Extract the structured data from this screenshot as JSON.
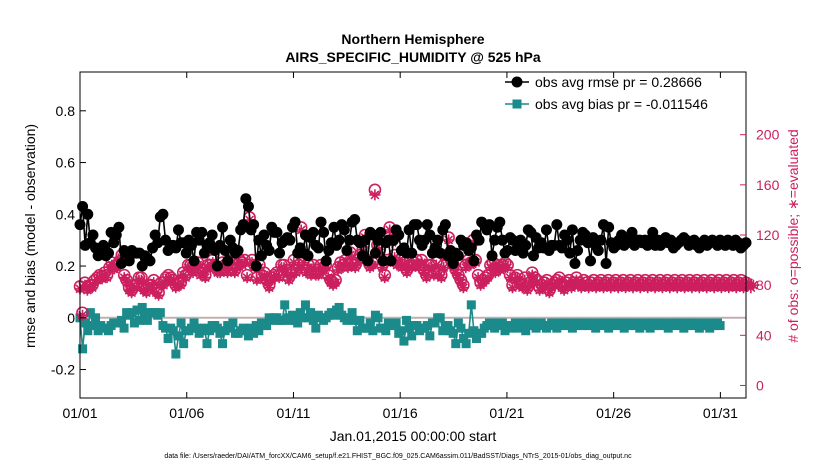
{
  "chart_data": {
    "type": "line",
    "title_lines": [
      "Northern Hemisphere",
      "AIRS_SPECIFIC_HUMIDITY @ 525 hPa"
    ],
    "xlabel": "Jan.01,2015 00:00:00 start",
    "ylabel": "rmse and bias (model - observation)",
    "ylabel_right": "# of obs: o=possible; ∗=evaluated",
    "footer": "data file: /Users/raeder/DAI/ATM_forcXX/CAM6_setup/f.e21.FHIST_BGC.f09_025.CAM6assim.011/BadSST/Diags_NTrS_2015-01/obs_diag_output.nc",
    "x_tick_labels": [
      "01/01",
      "01/06",
      "01/11",
      "01/16",
      "01/21",
      "01/26",
      "01/31"
    ],
    "x_tick_days": [
      1,
      6,
      11,
      16,
      21,
      26,
      31
    ],
    "xlim": [
      1,
      32.2
    ],
    "ylim": [
      -0.31,
      0.95
    ],
    "yticks": [
      -0.2,
      0,
      0.2,
      0.4,
      0.6,
      0.8
    ],
    "y_tick_labels": [
      "-0.2",
      "0",
      "0.2",
      "0.4",
      "0.6",
      "0.8"
    ],
    "ylim_right": [
      -10,
      250
    ],
    "yticks_right": [
      0,
      40,
      80,
      120,
      160,
      200
    ],
    "y_tick_labels_right": [
      "0",
      "40",
      "80",
      "120",
      "160",
      "200"
    ],
    "zero_line": 0,
    "legend_position": "top-right",
    "colors": {
      "rmse": "#000000",
      "bias": "#1a8a8a",
      "obs": "#cc1f5e",
      "zero": "#c0b0b0"
    },
    "series": [
      {
        "name": "obs avg rmse pr = 0.28666",
        "values": [
          0.36,
          0.43,
          0.28,
          0.4,
          0.29,
          0.32,
          0.27,
          0.24,
          0.25,
          0.28,
          0.24,
          0.25,
          0.33,
          0.29,
          0.32,
          0.35,
          0.21,
          0.26,
          0.25,
          0.22,
          0.26,
          0.25,
          0.25,
          0.25,
          0.2,
          0.24,
          0.23,
          0.22,
          0.27,
          0.32,
          0.29,
          0.39,
          0.4,
          0.3,
          0.26,
          0.28,
          0.28,
          0.27,
          0.34,
          0.29,
          0.29,
          0.25,
          0.3,
          0.28,
          0.22,
          0.33,
          0.3,
          0.33,
          0.25,
          0.28,
          0.29,
          0.32,
          0.26,
          0.2,
          0.28,
          0.35,
          0.26,
          0.22,
          0.3,
          0.27,
          0.25,
          0.26,
          0.34,
          0.36,
          0.46,
          0.43,
          0.34,
          0.36,
          0.2,
          0.3,
          0.24,
          0.32,
          0.28,
          0.26,
          0.35,
          0.33,
          0.33,
          0.25,
          0.29,
          0.3,
          0.31,
          0.3,
          0.35,
          0.37,
          0.25,
          0.27,
          0.25,
          0.32,
          0.24,
          0.31,
          0.33,
          0.28,
          0.27,
          0.37,
          0.33,
          0.22,
          0.26,
          0.29,
          0.35,
          0.28,
          0.3,
          0.36,
          0.34,
          0.26,
          0.3,
          0.37,
          0.38,
          0.3,
          0.29,
          0.24,
          0.3,
          0.22,
          0.33,
          0.32,
          0.25,
          0.3,
          0.33,
          0.22,
          0.29,
          0.3,
          0.22,
          0.3,
          0.34,
          0.32,
          0.26,
          0.27,
          0.25,
          0.34,
          0.25,
          0.36,
          0.36,
          0.3,
          0.28,
          0.3,
          0.36,
          0.32,
          0.25,
          0.27,
          0.3,
          0.25,
          0.34,
          0.36,
          0.24,
          0.26,
          0.21,
          0.25,
          0.24,
          0.3,
          0.28,
          0.29,
          0.26,
          0.27,
          0.22,
          0.32,
          0.3,
          0.37,
          0.36,
          0.34,
          0.36,
          0.24,
          0.3,
          0.35,
          0.37,
          0.3,
          0.25,
          0.26,
          0.31,
          0.3,
          0.26,
          0.28,
          0.3,
          0.25,
          0.28,
          0.34,
          0.33,
          0.24,
          0.31,
          0.27,
          0.29,
          0.27,
          0.34,
          0.26,
          0.28,
          0.28,
          0.36,
          0.28,
          0.27,
          0.32,
          0.3,
          0.25,
          0.34,
          0.21,
          0.26,
          0.3,
          0.33,
          0.32,
          0.29,
          0.22,
          0.31,
          0.28,
          0.26,
          0.3,
          0.36,
          0.21,
          0.35,
          0.29,
          0.27,
          0.28,
          0.3,
          0.32,
          0.28,
          0.29,
          0.3,
          0.33,
          0.28,
          0.3,
          0.3,
          0.29,
          0.3,
          0.28,
          0.3,
          0.33,
          0.28,
          0.3,
          0.28,
          0.3,
          0.31,
          0.29,
          0.3,
          0.27,
          0.28,
          0.29,
          0.3,
          0.31,
          0.3,
          0.28,
          0.29,
          0.3,
          0.28,
          0.27,
          0.29,
          0.3,
          0.28,
          0.29,
          0.3,
          0.29,
          0.28,
          0.3,
          0.29,
          0.28,
          0.3,
          0.29,
          0.28,
          0.3,
          0.29,
          0.27,
          0.28,
          0.29
        ]
      },
      {
        "name": "obs avg bias pr = -0.011546",
        "values": [
          0.0,
          -0.12,
          -0.02,
          -0.05,
          0.02,
          -0.03,
          0.0,
          -0.05,
          -0.03,
          -0.04,
          -0.04,
          -0.05,
          -0.03,
          -0.02,
          -0.02,
          -0.02,
          -0.01,
          -0.04,
          0.02,
          0.01,
          0.02,
          -0.02,
          0.03,
          -0.01,
          0.04,
          0.01,
          -0.01,
          0.02,
          0.02,
          0.02,
          0.01,
          0.02,
          -0.03,
          -0.04,
          -0.08,
          -0.04,
          -0.05,
          -0.14,
          -0.07,
          -0.02,
          -0.1,
          -0.05,
          -0.05,
          -0.04,
          -0.02,
          -0.04,
          -0.06,
          -0.05,
          -0.04,
          -0.1,
          -0.05,
          -0.03,
          -0.03,
          -0.04,
          -0.06,
          -0.1,
          -0.05,
          -0.03,
          -0.04,
          -0.02,
          -0.06,
          -0.06,
          -0.05,
          -0.04,
          -0.05,
          -0.07,
          -0.04,
          -0.06,
          -0.03,
          -0.05,
          -0.02,
          -0.03,
          -0.03,
          0.0,
          -0.01,
          0.0,
          0.0,
          -0.01,
          -0.01,
          0.05,
          0.0,
          -0.01,
          0.01,
          -0.01,
          -0.02,
          0.02,
          0.0,
          0.05,
          0.0,
          0.02,
          -0.01,
          -0.04,
          0.01,
          0.0,
          -0.01,
          0.0,
          0.01,
          0.02,
          0.01,
          0.03,
          0.04,
          0.01,
          0.0,
          -0.01,
          0.0,
          0.02,
          -0.01,
          -0.05,
          -0.01,
          -0.04,
          -0.04,
          -0.04,
          -0.02,
          -0.05,
          0.01,
          0.0,
          -0.04,
          -0.04,
          -0.05,
          -0.02,
          -0.03,
          -0.03,
          -0.02,
          -0.06,
          -0.05,
          -0.09,
          -0.01,
          -0.04,
          -0.07,
          -0.03,
          -0.03,
          -0.05,
          -0.04,
          -0.04,
          -0.03,
          -0.07,
          -0.02,
          -0.02,
          0.0,
          0.0,
          -0.05,
          -0.03,
          -0.03,
          -0.05,
          -0.06,
          -0.1,
          -0.02,
          -0.04,
          -0.08,
          -0.1,
          -0.06,
          0.05,
          -0.05,
          -0.08,
          -0.06,
          -0.06,
          -0.04,
          -0.03,
          -0.02,
          -0.02,
          -0.04,
          -0.02,
          -0.03,
          -0.02,
          -0.05,
          -0.03,
          -0.04,
          -0.03,
          -0.02,
          -0.04,
          -0.03,
          -0.02,
          -0.05,
          -0.03,
          -0.02,
          -0.02,
          -0.04,
          -0.03,
          -0.02,
          -0.03,
          -0.04,
          -0.03,
          -0.02,
          -0.03,
          -0.04,
          -0.02,
          -0.03,
          -0.02,
          -0.03,
          -0.02,
          -0.04,
          -0.02,
          -0.03,
          -0.02,
          -0.03,
          -0.02,
          -0.03,
          -0.02,
          -0.03,
          -0.04,
          -0.02,
          -0.03,
          -0.02,
          -0.03,
          -0.04,
          -0.02,
          -0.03,
          -0.02,
          -0.03,
          -0.02,
          -0.04,
          -0.02,
          -0.03,
          -0.02,
          -0.03,
          -0.02,
          -0.04,
          -0.03,
          -0.02,
          -0.03,
          -0.04,
          -0.02,
          -0.03,
          -0.02,
          -0.03,
          -0.02,
          -0.03,
          -0.04,
          -0.02,
          -0.03,
          -0.02,
          -0.03,
          -0.02,
          -0.04,
          -0.02,
          -0.03,
          -0.02,
          -0.03,
          -0.02,
          -0.04,
          -0.03,
          -0.02,
          -0.03,
          -0.04,
          -0.02,
          -0.03,
          -0.02,
          -0.03
        ]
      }
    ],
    "obs_possible": [
      79,
      58,
      82,
      78,
      80,
      80,
      84,
      86,
      88,
      87,
      90,
      88,
      94,
      98,
      95,
      96,
      99,
      104,
      88,
      84,
      78,
      76,
      80,
      80,
      86,
      86,
      78,
      76,
      80,
      80,
      84,
      76,
      74,
      82,
      82,
      86,
      88,
      86,
      84,
      80,
      82,
      82,
      90,
      88,
      96,
      96,
      92,
      96,
      98,
      90,
      92,
      88,
      96,
      96,
      100,
      96,
      92,
      92,
      98,
      96,
      92,
      96,
      100,
      92,
      96,
      100,
      98,
      100,
      88,
      134,
      100,
      96,
      86,
      96,
      88,
      90,
      84,
      80,
      86,
      88,
      90,
      88,
      96,
      96,
      92,
      86,
      90,
      100,
      92,
      96,
      126,
      100,
      92,
      96,
      90,
      96,
      90,
      90,
      96,
      94,
      96,
      88,
      84,
      82,
      84,
      94,
      98,
      96,
      100,
      96,
      106,
      98,
      96,
      100,
      104,
      108,
      120,
      100,
      96,
      98,
      156,
      112,
      108,
      96,
      88,
      100,
      126,
      116,
      104,
      98,
      100,
      96,
      98,
      92,
      96,
      96,
      98,
      100,
      96,
      100,
      92,
      88,
      96,
      96,
      90,
      98,
      90,
      88,
      96,
      104,
      118,
      100,
      96,
      92,
      88,
      84,
      80,
      96,
      100,
      98,
      116,
      100,
      88,
      82,
      84,
      86,
      88,
      96,
      98,
      92,
      96,
      94,
      96,
      98,
      96,
      88,
      80,
      86,
      88,
      82,
      80,
      86,
      78,
      82,
      90,
      86,
      84,
      78,
      80,
      82,
      84,
      76,
      80,
      82,
      84,
      86,
      80,
      78,
      82,
      84,
      80,
      82,
      86,
      82,
      80,
      84,
      82,
      80,
      82,
      84,
      80,
      82,
      84,
      80,
      82,
      84,
      80,
      82,
      84,
      80,
      82,
      84,
      80,
      82,
      84,
      80,
      82,
      84,
      80,
      82,
      84,
      80,
      82,
      84,
      80,
      82,
      84,
      80,
      82,
      84,
      80,
      82,
      84,
      80,
      82,
      84,
      80,
      82,
      84,
      80,
      82,
      84,
      80,
      82,
      84,
      80,
      82,
      84,
      80,
      82,
      84,
      80,
      82,
      84,
      80,
      82,
      84,
      80,
      82,
      84,
      80,
      82
    ],
    "obs_evaluated": [
      77,
      56,
      80,
      76,
      78,
      78,
      82,
      84,
      86,
      85,
      88,
      86,
      92,
      96,
      93,
      94,
      97,
      102,
      86,
      82,
      76,
      74,
      78,
      78,
      84,
      84,
      76,
      74,
      78,
      78,
      82,
      74,
      72,
      80,
      80,
      84,
      86,
      84,
      82,
      78,
      80,
      80,
      88,
      86,
      94,
      94,
      90,
      94,
      96,
      88,
      90,
      86,
      94,
      94,
      98,
      94,
      90,
      90,
      96,
      94,
      90,
      94,
      98,
      90,
      94,
      98,
      96,
      98,
      86,
      132,
      98,
      94,
      84,
      94,
      86,
      88,
      82,
      78,
      84,
      86,
      88,
      86,
      94,
      94,
      90,
      84,
      88,
      98,
      90,
      94,
      124,
      98,
      90,
      94,
      88,
      94,
      88,
      88,
      94,
      92,
      94,
      86,
      82,
      80,
      82,
      92,
      96,
      94,
      98,
      94,
      104,
      96,
      94,
      98,
      102,
      106,
      118,
      98,
      94,
      96,
      152,
      110,
      106,
      94,
      86,
      98,
      124,
      114,
      102,
      96,
      98,
      94,
      96,
      90,
      94,
      94,
      96,
      98,
      94,
      98,
      90,
      86,
      94,
      94,
      88,
      96,
      88,
      86,
      94,
      102,
      116,
      98,
      94,
      90,
      86,
      82,
      78,
      94,
      98,
      96,
      114,
      98,
      86,
      80,
      82,
      84,
      86,
      94,
      96,
      90,
      94,
      92,
      94,
      96,
      94,
      86,
      78,
      84,
      86,
      80,
      78,
      84,
      76,
      80,
      88,
      84,
      82,
      76,
      78,
      80,
      82,
      74,
      78,
      80,
      82,
      84,
      78,
      76,
      80,
      82,
      78,
      80,
      84,
      80,
      78,
      82,
      80,
      78,
      80,
      82,
      78,
      80,
      82,
      78,
      80,
      82,
      78,
      80,
      82,
      78,
      80,
      82,
      78,
      80,
      82,
      78,
      80,
      82,
      78,
      80,
      82,
      78,
      80,
      82,
      78,
      80,
      82,
      78,
      80,
      82,
      78,
      80,
      82,
      78,
      80,
      82,
      78,
      80,
      82,
      78,
      80,
      82,
      78,
      80,
      82,
      78,
      80,
      82,
      78,
      80,
      82,
      78,
      80,
      82,
      78,
      80,
      82,
      78,
      80,
      82,
      78,
      80,
      82,
      78,
      80
    ]
  }
}
